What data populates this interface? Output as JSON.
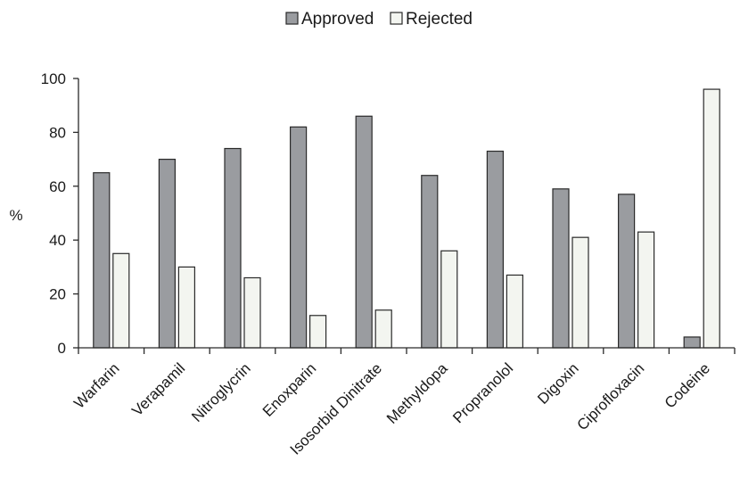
{
  "chart_data": {
    "type": "bar",
    "title": "",
    "xlabel": "",
    "ylabel": "%",
    "ylim": [
      0,
      100
    ],
    "yticks": [
      0,
      20,
      40,
      60,
      80,
      100
    ],
    "grid": false,
    "legend_position": "top-center",
    "categories": [
      "Warfarin",
      "Verapamil",
      "Nitroglycrin",
      "Enoxparin",
      "Isosorbid Dinitrate",
      "Methyldopa",
      "Propranolol",
      "Digoxin",
      "Ciprofloxacin",
      "Codeine"
    ],
    "series": [
      {
        "name": "Approved",
        "color": "#9a9ca0",
        "values": [
          65,
          70,
          74,
          82,
          86,
          64,
          73,
          59,
          57,
          4
        ]
      },
      {
        "name": "Rejected",
        "color": "#f3f5f0",
        "values": [
          35,
          30,
          26,
          12,
          14,
          36,
          27,
          41,
          43,
          96
        ]
      }
    ]
  }
}
